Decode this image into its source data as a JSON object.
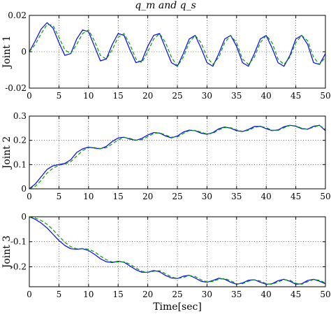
{
  "chart_data": [
    {
      "type": "line",
      "title": "q_m and q_s",
      "ylabel": "Joint 1",
      "xlabel": "",
      "xlim": [
        0,
        50
      ],
      "ylim": [
        -0.02,
        0.02
      ],
      "xticks": [
        "0",
        "5",
        "10",
        "15",
        "20",
        "25",
        "30",
        "35",
        "40",
        "45",
        "50"
      ],
      "yticks": [
        "-0.02",
        "0",
        "0.02"
      ],
      "grid": true,
      "x": [
        0,
        1,
        2,
        3,
        4,
        5,
        6,
        7,
        8,
        9,
        10,
        11,
        12,
        13,
        14,
        15,
        16,
        17,
        18,
        19,
        20,
        21,
        22,
        23,
        24,
        25,
        26,
        27,
        28,
        29,
        30,
        31,
        32,
        33,
        34,
        35,
        36,
        37,
        38,
        39,
        40,
        41,
        42,
        43,
        44,
        45,
        46,
        47,
        48,
        49,
        50
      ],
      "series": [
        {
          "color": "#0000ff",
          "dash": "solid",
          "values": [
            0,
            0.006,
            0.0125,
            0.016,
            0.013,
            0.005,
            -0.002,
            -0.001,
            0.007,
            0.012,
            0.011,
            0.003,
            -0.005,
            -0.004,
            0.004,
            0.01,
            0.009,
            0.001,
            -0.006,
            -0.005,
            0.003,
            0.009,
            0.01,
            0.002,
            -0.006,
            -0.008,
            -0.001,
            0.007,
            0.009,
            0.002,
            -0.006,
            -0.008,
            -0.001,
            0.007,
            0.009,
            0.003,
            -0.006,
            -0.008,
            -0.001,
            0.007,
            0.009,
            0.002,
            -0.006,
            -0.008,
            -0.002,
            0.007,
            0.009,
            0.004,
            -0.006,
            -0.007,
            -0.001
          ]
        },
        {
          "color": "#00a000",
          "dash": "dashed",
          "values": [
            0,
            0.004,
            0.01,
            0.015,
            0.0145,
            0.008,
            0.001,
            -0.001,
            0.004,
            0.01,
            0.012,
            0.006,
            -0.002,
            -0.004,
            0.001,
            0.008,
            0.01,
            0.004,
            -0.004,
            -0.006,
            0.0,
            0.007,
            0.01,
            0.005,
            -0.003,
            -0.008,
            -0.003,
            0.005,
            0.009,
            0.005,
            -0.003,
            -0.007,
            -0.003,
            0.005,
            0.009,
            0.005,
            -0.004,
            -0.007,
            -0.003,
            0.005,
            0.009,
            0.005,
            -0.004,
            -0.007,
            -0.003,
            0.005,
            0.009,
            0.006,
            -0.003,
            -0.007,
            -0.003
          ]
        }
      ]
    },
    {
      "type": "line",
      "title": "",
      "ylabel": "Joint 2",
      "xlabel": "",
      "xlim": [
        0,
        50
      ],
      "ylim": [
        0,
        0.3
      ],
      "xticks": [
        "0",
        "5",
        "10",
        "15",
        "20",
        "25",
        "30",
        "35",
        "40",
        "45",
        "50"
      ],
      "yticks": [
        "0",
        "0.1",
        "0.2",
        "0.3"
      ],
      "grid": true,
      "x": [
        0,
        1,
        2,
        3,
        4,
        5,
        6,
        7,
        8,
        9,
        10,
        11,
        12,
        13,
        14,
        15,
        16,
        17,
        18,
        19,
        20,
        21,
        22,
        23,
        24,
        25,
        26,
        27,
        28,
        29,
        30,
        31,
        32,
        33,
        34,
        35,
        36,
        37,
        38,
        39,
        40,
        41,
        42,
        43,
        44,
        45,
        46,
        47,
        48,
        49,
        50
      ],
      "series": [
        {
          "color": "#0000ff",
          "dash": "solid",
          "values": [
            0,
            0.02,
            0.05,
            0.08,
            0.095,
            0.1,
            0.105,
            0.12,
            0.15,
            0.165,
            0.172,
            0.168,
            0.165,
            0.175,
            0.195,
            0.21,
            0.213,
            0.205,
            0.2,
            0.208,
            0.222,
            0.232,
            0.23,
            0.218,
            0.21,
            0.218,
            0.234,
            0.242,
            0.24,
            0.23,
            0.225,
            0.232,
            0.248,
            0.255,
            0.25,
            0.24,
            0.236,
            0.245,
            0.257,
            0.258,
            0.248,
            0.24,
            0.243,
            0.256,
            0.262,
            0.258,
            0.248,
            0.246,
            0.258,
            0.262,
            0.24
          ]
        },
        {
          "color": "#00a000",
          "dash": "dashed",
          "values": [
            0,
            0.01,
            0.035,
            0.065,
            0.085,
            0.097,
            0.102,
            0.112,
            0.135,
            0.158,
            0.17,
            0.17,
            0.166,
            0.17,
            0.185,
            0.202,
            0.212,
            0.208,
            0.201,
            0.203,
            0.215,
            0.228,
            0.231,
            0.222,
            0.213,
            0.214,
            0.228,
            0.24,
            0.241,
            0.234,
            0.226,
            0.229,
            0.243,
            0.253,
            0.252,
            0.243,
            0.237,
            0.241,
            0.253,
            0.258,
            0.252,
            0.242,
            0.241,
            0.252,
            0.261,
            0.26,
            0.25,
            0.246,
            0.254,
            0.262,
            0.245
          ]
        }
      ]
    },
    {
      "type": "line",
      "title": "",
      "ylabel": "Joint 3",
      "xlabel": "Time[sec]",
      "xlim": [
        0,
        50
      ],
      "ylim": [
        -0.28,
        0
      ],
      "xticks": [
        "0",
        "5",
        "10",
        "15",
        "20",
        "25",
        "30",
        "35",
        "40",
        "45",
        "50"
      ],
      "yticks": [
        "0",
        "-0.1",
        "-0.2"
      ],
      "grid": true,
      "x": [
        0,
        1,
        2,
        3,
        4,
        5,
        6,
        7,
        8,
        9,
        10,
        11,
        12,
        13,
        14,
        15,
        16,
        17,
        18,
        19,
        20,
        21,
        22,
        23,
        24,
        25,
        26,
        27,
        28,
        29,
        30,
        31,
        32,
        33,
        34,
        35,
        36,
        37,
        38,
        39,
        40,
        41,
        42,
        43,
        44,
        45,
        46,
        47,
        48,
        49,
        50
      ],
      "series": [
        {
          "color": "#0000ff",
          "dash": "solid",
          "values": [
            0,
            -0.01,
            -0.025,
            -0.045,
            -0.07,
            -0.095,
            -0.115,
            -0.128,
            -0.13,
            -0.128,
            -0.135,
            -0.15,
            -0.168,
            -0.18,
            -0.183,
            -0.178,
            -0.182,
            -0.197,
            -0.212,
            -0.222,
            -0.222,
            -0.215,
            -0.22,
            -0.235,
            -0.245,
            -0.247,
            -0.238,
            -0.234,
            -0.245,
            -0.258,
            -0.262,
            -0.255,
            -0.246,
            -0.25,
            -0.262,
            -0.27,
            -0.265,
            -0.254,
            -0.252,
            -0.262,
            -0.27,
            -0.268,
            -0.256,
            -0.25,
            -0.258,
            -0.27,
            -0.268,
            -0.255,
            -0.25,
            -0.258,
            -0.268
          ]
        },
        {
          "color": "#00a000",
          "dash": "dashed",
          "values": [
            0,
            -0.005,
            -0.015,
            -0.03,
            -0.052,
            -0.078,
            -0.102,
            -0.12,
            -0.128,
            -0.127,
            -0.13,
            -0.14,
            -0.157,
            -0.172,
            -0.181,
            -0.181,
            -0.18,
            -0.19,
            -0.205,
            -0.218,
            -0.223,
            -0.218,
            -0.216,
            -0.228,
            -0.241,
            -0.247,
            -0.243,
            -0.235,
            -0.239,
            -0.252,
            -0.261,
            -0.259,
            -0.25,
            -0.247,
            -0.256,
            -0.268,
            -0.268,
            -0.258,
            -0.252,
            -0.257,
            -0.268,
            -0.27,
            -0.261,
            -0.252,
            -0.254,
            -0.266,
            -0.27,
            -0.26,
            -0.251,
            -0.254,
            -0.265
          ]
        }
      ]
    }
  ]
}
